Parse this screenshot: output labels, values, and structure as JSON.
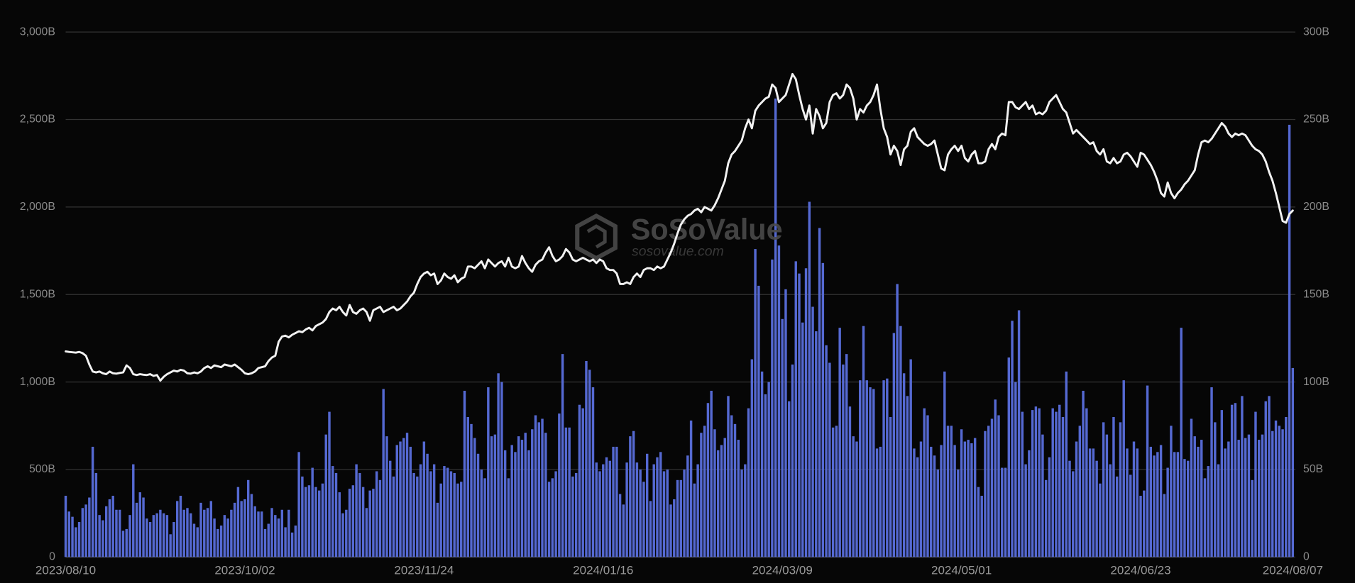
{
  "chart_data": {
    "type": "combo",
    "watermark": "SoSoValue",
    "watermark_url": "sosovalue.com",
    "categories": [
      "2023/08/10",
      null,
      null,
      null,
      null,
      null,
      null,
      null,
      null,
      null,
      null,
      null,
      null,
      null,
      null,
      null,
      null,
      null,
      null,
      null,
      null,
      null,
      null,
      null,
      null,
      null,
      null,
      null,
      null,
      null,
      null,
      null,
      null,
      null,
      null,
      null,
      null,
      null,
      null,
      null,
      null,
      null,
      null,
      null,
      null,
      null,
      null,
      null,
      null,
      null,
      null,
      null,
      null,
      "2023/10/02",
      null,
      null,
      null,
      null,
      null,
      null,
      null,
      null,
      null,
      null,
      null,
      null,
      null,
      null,
      null,
      null,
      null,
      null,
      null,
      null,
      null,
      null,
      null,
      null,
      null,
      null,
      null,
      null,
      null,
      null,
      null,
      null,
      null,
      null,
      null,
      null,
      null,
      null,
      null,
      null,
      null,
      null,
      null,
      null,
      null,
      null,
      null,
      null,
      null,
      null,
      null,
      null,
      "2023/11/24",
      null,
      null,
      null,
      null,
      null,
      null,
      null,
      null,
      null,
      null,
      null,
      null,
      null,
      null,
      null,
      null,
      null,
      null,
      null,
      null,
      null,
      null,
      null,
      null,
      null,
      null,
      null,
      null,
      null,
      null,
      null,
      null,
      null,
      null,
      null,
      null,
      null,
      null,
      null,
      null,
      null,
      null,
      null,
      null,
      null,
      null,
      null,
      null,
      null,
      null,
      null,
      null,
      "2024/01/16",
      null,
      null,
      null,
      null,
      null,
      null,
      null,
      null,
      null,
      null,
      null,
      null,
      null,
      null,
      null,
      null,
      null,
      null,
      null,
      null,
      null,
      null,
      null,
      null,
      null,
      null,
      null,
      null,
      null,
      null,
      null,
      null,
      null,
      null,
      null,
      null,
      null,
      null,
      null,
      null,
      null,
      null,
      null,
      null,
      null,
      null,
      null,
      null,
      null,
      null,
      null,
      null,
      "2024/03/09",
      null,
      null,
      null,
      null,
      null,
      null,
      null,
      null,
      null,
      null,
      null,
      null,
      null,
      null,
      null,
      null,
      null,
      null,
      null,
      null,
      null,
      null,
      null,
      null,
      null,
      null,
      null,
      null,
      null,
      null,
      null,
      null,
      null,
      null,
      null,
      null,
      null,
      null,
      null,
      null,
      null,
      null,
      null,
      null,
      null,
      null,
      null,
      null,
      null,
      null,
      null,
      null,
      "2024/05/01",
      null,
      null,
      null,
      null,
      null,
      null,
      null,
      null,
      null,
      null,
      null,
      null,
      null,
      null,
      null,
      null,
      null,
      null,
      null,
      null,
      null,
      null,
      null,
      null,
      null,
      null,
      null,
      null,
      null,
      null,
      null,
      null,
      null,
      null,
      null,
      null,
      null,
      null,
      null,
      null,
      null,
      null,
      null,
      null,
      null,
      null,
      null,
      null,
      null,
      null,
      null,
      null,
      "2024/06/23",
      null,
      null,
      null,
      null,
      null,
      null,
      null,
      null,
      null,
      null,
      null,
      null,
      null,
      null,
      null,
      null,
      null,
      null,
      null,
      null,
      null,
      null,
      null,
      null,
      null,
      null,
      null,
      null,
      null,
      null,
      null,
      null,
      null,
      null,
      null,
      null,
      null,
      null,
      null,
      null,
      null,
      null,
      null,
      null,
      "2024/08/07"
    ],
    "series": [
      {
        "type": "bar",
        "axis": "y2",
        "color": "#5569d2",
        "values": [
          35,
          26,
          23,
          17,
          20,
          28,
          30,
          34,
          63,
          48,
          24,
          21,
          29,
          33,
          35,
          27,
          27,
          15,
          16,
          24,
          53,
          31,
          37,
          34,
          22,
          20,
          24,
          25,
          27,
          25,
          24,
          13,
          20,
          32,
          35,
          27,
          28,
          25,
          19,
          17,
          31,
          27,
          28,
          32,
          22,
          16,
          18,
          24,
          22,
          27,
          31,
          40,
          32,
          33,
          44,
          36,
          29,
          26,
          26,
          16,
          19,
          28,
          24,
          22,
          27,
          17,
          27,
          14,
          18,
          60,
          46,
          40,
          41,
          51,
          40,
          38,
          42,
          70,
          83,
          52,
          48,
          37,
          25,
          27,
          39,
          41,
          53,
          48,
          40,
          28,
          38,
          39,
          49,
          44,
          96,
          69,
          55,
          46,
          64,
          66,
          68,
          71,
          63,
          48,
          46,
          53,
          66,
          59,
          49,
          53,
          31,
          42,
          52,
          51,
          49,
          48,
          42,
          43,
          95,
          80,
          76,
          68,
          59,
          50,
          45,
          97,
          69,
          70,
          105,
          100,
          61,
          45,
          64,
          60,
          69,
          67,
          71,
          61,
          73,
          81,
          77,
          79,
          71,
          43,
          45,
          49,
          82,
          116,
          74,
          74,
          46,
          48,
          87,
          85,
          112,
          107,
          97,
          54,
          49,
          53,
          57,
          55,
          63,
          63,
          36,
          30,
          54,
          69,
          72,
          54,
          50,
          43,
          59,
          32,
          53,
          57,
          60,
          49,
          50,
          30,
          33,
          44,
          44,
          50,
          58,
          78,
          42,
          53,
          71,
          75,
          88,
          95,
          73,
          61,
          64,
          68,
          92,
          81,
          76,
          67,
          50,
          53,
          85,
          113,
          176,
          155,
          106,
          93,
          100,
          170,
          262,
          178,
          136,
          153,
          89,
          110,
          169,
          162,
          134,
          165,
          203,
          143,
          129,
          188,
          168,
          121,
          111,
          74,
          75,
          131,
          110,
          116,
          86,
          69,
          66,
          101,
          132,
          101,
          97,
          96,
          62,
          63,
          101,
          102,
          80,
          128,
          156,
          132,
          105,
          92,
          113,
          62,
          57,
          66,
          85,
          81,
          63,
          58,
          50,
          64,
          106,
          75,
          75,
          64,
          50,
          73,
          66,
          67,
          65,
          68,
          40,
          35,
          72,
          75,
          79,
          90,
          81,
          51,
          51,
          114,
          135,
          100,
          141,
          83,
          53,
          61,
          84,
          86,
          85,
          70,
          44,
          57,
          85,
          83,
          87,
          80,
          106,
          55,
          49,
          66,
          75,
          95,
          85,
          62,
          62,
          55,
          42,
          77,
          70,
          53,
          80,
          46,
          77,
          101,
          62,
          47,
          66,
          62,
          35,
          38,
          98,
          63,
          58,
          60,
          64,
          36,
          51,
          75,
          60,
          60,
          131,
          56,
          55,
          79,
          69,
          63,
          67,
          45,
          52,
          97,
          77,
          53,
          84,
          62,
          66,
          87,
          88,
          67,
          92,
          68,
          70,
          44,
          83,
          67,
          70,
          89,
          92,
          72,
          78,
          75,
          73,
          80,
          247,
          108
        ]
      },
      {
        "type": "line",
        "color": "#f2f2f2",
        "values": [
          1175,
          1172,
          1170,
          1168,
          1172,
          1165,
          1150,
          1100,
          1060,
          1055,
          1060,
          1050,
          1045,
          1060,
          1050,
          1048,
          1052,
          1055,
          1095,
          1080,
          1045,
          1040,
          1045,
          1042,
          1040,
          1045,
          1035,
          1040,
          1008,
          1030,
          1045,
          1055,
          1065,
          1060,
          1070,
          1065,
          1050,
          1048,
          1055,
          1050,
          1060,
          1080,
          1090,
          1080,
          1095,
          1090,
          1085,
          1100,
          1095,
          1090,
          1100,
          1085,
          1070,
          1050,
          1045,
          1050,
          1060,
          1080,
          1085,
          1090,
          1120,
          1140,
          1150,
          1230,
          1260,
          1265,
          1255,
          1270,
          1280,
          1290,
          1285,
          1300,
          1310,
          1295,
          1320,
          1330,
          1340,
          1360,
          1400,
          1420,
          1410,
          1430,
          1400,
          1380,
          1440,
          1400,
          1390,
          1410,
          1420,
          1400,
          1350,
          1410,
          1420,
          1430,
          1400,
          1410,
          1420,
          1430,
          1410,
          1420,
          1440,
          1460,
          1490,
          1510,
          1560,
          1600,
          1620,
          1630,
          1610,
          1620,
          1560,
          1580,
          1620,
          1600,
          1590,
          1610,
          1570,
          1590,
          1600,
          1660,
          1660,
          1650,
          1670,
          1690,
          1650,
          1700,
          1680,
          1660,
          1680,
          1690,
          1660,
          1710,
          1660,
          1650,
          1660,
          1720,
          1680,
          1650,
          1630,
          1670,
          1690,
          1700,
          1740,
          1770,
          1720,
          1690,
          1700,
          1720,
          1760,
          1740,
          1700,
          1690,
          1700,
          1710,
          1700,
          1690,
          1700,
          1680,
          1700,
          1690,
          1650,
          1640,
          1640,
          1620,
          1560,
          1560,
          1570,
          1560,
          1600,
          1620,
          1600,
          1640,
          1650,
          1650,
          1640,
          1660,
          1650,
          1660,
          1700,
          1740,
          1790,
          1850,
          1900,
          1930,
          1950,
          1960,
          1980,
          1990,
          1970,
          2000,
          1990,
          1980,
          2010,
          2050,
          2100,
          2150,
          2250,
          2300,
          2320,
          2350,
          2380,
          2450,
          2500,
          2450,
          2550,
          2580,
          2600,
          2620,
          2630,
          2700,
          2680,
          2600,
          2620,
          2640,
          2700,
          2760,
          2730,
          2640,
          2560,
          2500,
          2580,
          2420,
          2560,
          2520,
          2450,
          2480,
          2600,
          2640,
          2650,
          2620,
          2640,
          2700,
          2680,
          2620,
          2500,
          2560,
          2540,
          2580,
          2600,
          2640,
          2700,
          2560,
          2450,
          2400,
          2300,
          2350,
          2320,
          2240,
          2330,
          2350,
          2430,
          2450,
          2400,
          2380,
          2360,
          2350,
          2360,
          2380,
          2300,
          2220,
          2210,
          2300,
          2330,
          2350,
          2320,
          2350,
          2280,
          2260,
          2300,
          2320,
          2250,
          2250,
          2260,
          2330,
          2360,
          2330,
          2400,
          2420,
          2410,
          2600,
          2600,
          2570,
          2560,
          2580,
          2600,
          2560,
          2580,
          2530,
          2540,
          2530,
          2550,
          2600,
          2620,
          2640,
          2600,
          2560,
          2540,
          2480,
          2420,
          2440,
          2420,
          2400,
          2380,
          2360,
          2370,
          2320,
          2300,
          2330,
          2260,
          2250,
          2280,
          2250,
          2260,
          2300,
          2310,
          2290,
          2260,
          2230,
          2310,
          2300,
          2270,
          2240,
          2200,
          2150,
          2080,
          2060,
          2140,
          2080,
          2050,
          2080,
          2100,
          2130,
          2150,
          2180,
          2210,
          2300,
          2370,
          2380,
          2370,
          2390,
          2420,
          2450,
          2480,
          2460,
          2420,
          2400,
          2420,
          2410,
          2420,
          2410,
          2380,
          2350,
          2330,
          2320,
          2300,
          2260,
          2200,
          2150,
          2080,
          2000,
          1920,
          1910,
          1960,
          1980
        ]
      }
    ],
    "ylim": [
      0,
      3000
    ],
    "yticks": [
      0,
      {
        "value": 500,
        "label": "500B"
      },
      {
        "value": 1000,
        "label": "1,000B"
      },
      {
        "value": 1500,
        "label": "1,500B"
      },
      {
        "value": 2000,
        "label": "2,000B"
      },
      {
        "value": 2500,
        "label": "2,500B"
      },
      {
        "value": 3000,
        "label": "3,000B"
      }
    ],
    "y2lim": [
      0,
      300
    ],
    "y2ticks": [
      0,
      {
        "value": 50,
        "label": "50B"
      },
      {
        "value": 100,
        "label": "100B"
      },
      {
        "value": 150,
        "label": "150B"
      },
      {
        "value": 200,
        "label": "200B"
      },
      {
        "value": 250,
        "label": "250B"
      },
      {
        "value": 300,
        "label": "300B"
      }
    ],
    "grid": true
  }
}
